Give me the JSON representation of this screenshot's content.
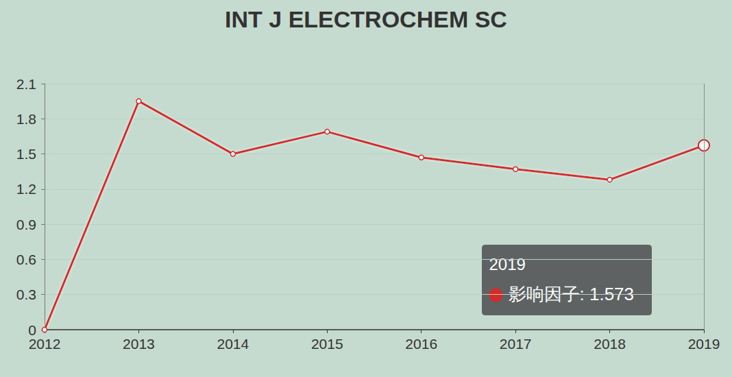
{
  "chart_data": {
    "type": "line",
    "title": "INT J ELECTROCHEM SC",
    "categories": [
      "2012",
      "2013",
      "2014",
      "2015",
      "2016",
      "2017",
      "2018",
      "2019"
    ],
    "series": [
      {
        "name": "影响因子",
        "color": "#d42a2a",
        "values": [
          0,
          1.95,
          1.5,
          1.69,
          1.47,
          1.37,
          1.28,
          1.573
        ],
        "marker": "circle"
      }
    ],
    "ylim": [
      0,
      2.1
    ],
    "yticks": [
      0,
      0.3,
      0.6,
      0.9,
      1.2,
      1.5,
      1.8,
      2.1
    ],
    "grid": true,
    "annotations": [
      {
        "category": "2019",
        "title": "2019",
        "text": "影响因子: 1.573"
      }
    ]
  }
}
